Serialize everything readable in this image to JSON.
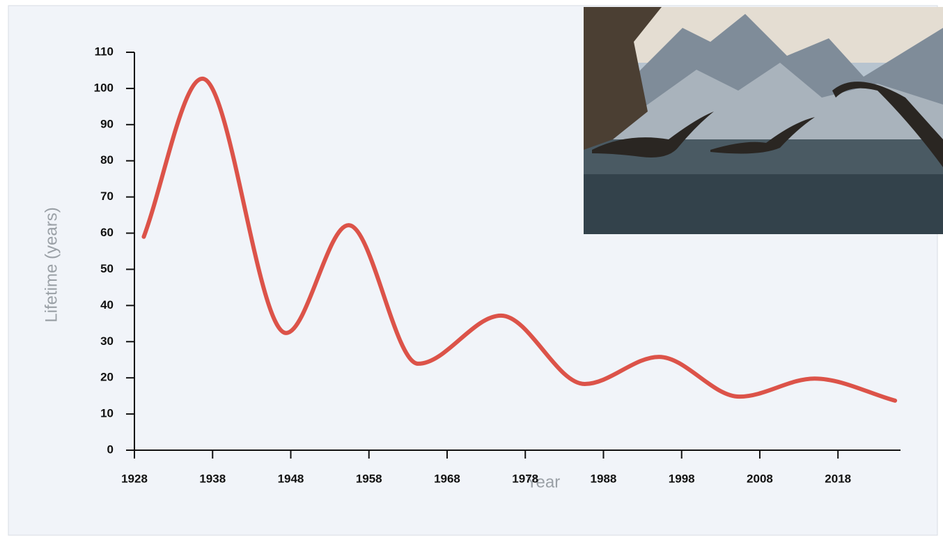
{
  "chart_data": {
    "type": "line",
    "x_label": "Year",
    "y_label": "Lifetime (years)",
    "x": [
      1929.2,
      1936.7,
      1947.4,
      1955.4,
      1964.3,
      1974.9,
      1985.6,
      1995.1,
      2005.4,
      2015.0,
      2025.3
    ],
    "values": [
      59,
      102.7,
      32.4,
      62.2,
      23.9,
      37.2,
      18.3,
      25.8,
      14.8,
      19.8,
      13.7
    ],
    "color": "#dc5349",
    "xlim": [
      1928,
      2026
    ],
    "xticks": [
      1928,
      1938,
      1948,
      1958,
      1968,
      1978,
      1988,
      1998,
      2008,
      2018
    ],
    "ylim": [
      0,
      110
    ],
    "yticks": [
      0,
      10,
      20,
      30,
      40,
      50,
      60,
      70,
      80,
      90,
      100,
      110
    ]
  }
}
